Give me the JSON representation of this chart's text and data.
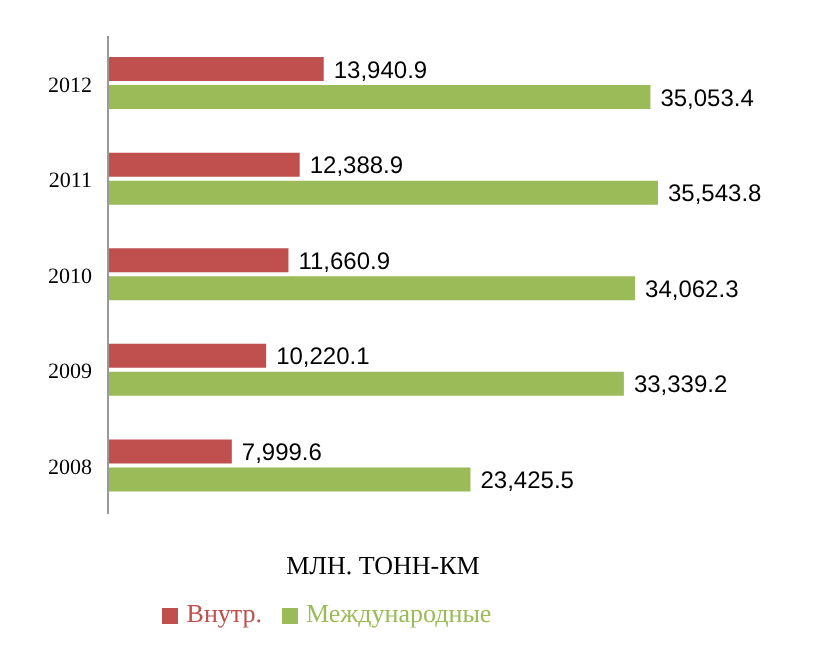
{
  "chart_data": {
    "type": "bar",
    "orientation": "horizontal",
    "xlabel": "МЛН. ТОНН-КМ",
    "categories": [
      "2012",
      "2011",
      "2010",
      "2009",
      "2008"
    ],
    "series": [
      {
        "name": "Внутр.",
        "color": "#c0504d",
        "values": [
          13940.9,
          12388.9,
          11660.9,
          10220.1,
          7999.6
        ],
        "value_labels": [
          "13,940.9",
          "12,388.9",
          "11,660.9",
          "10,220.1",
          "7,999.6"
        ]
      },
      {
        "name": "Международные",
        "color": "#9bbb59",
        "values": [
          35053.4,
          35543.8,
          34062.3,
          33339.2,
          23425.5
        ],
        "value_labels": [
          "35,053.4",
          "35,543.8",
          "34,062.3",
          "33,339.2",
          "23,425.5"
        ]
      }
    ],
    "legend": "bottom",
    "grid": false
  }
}
